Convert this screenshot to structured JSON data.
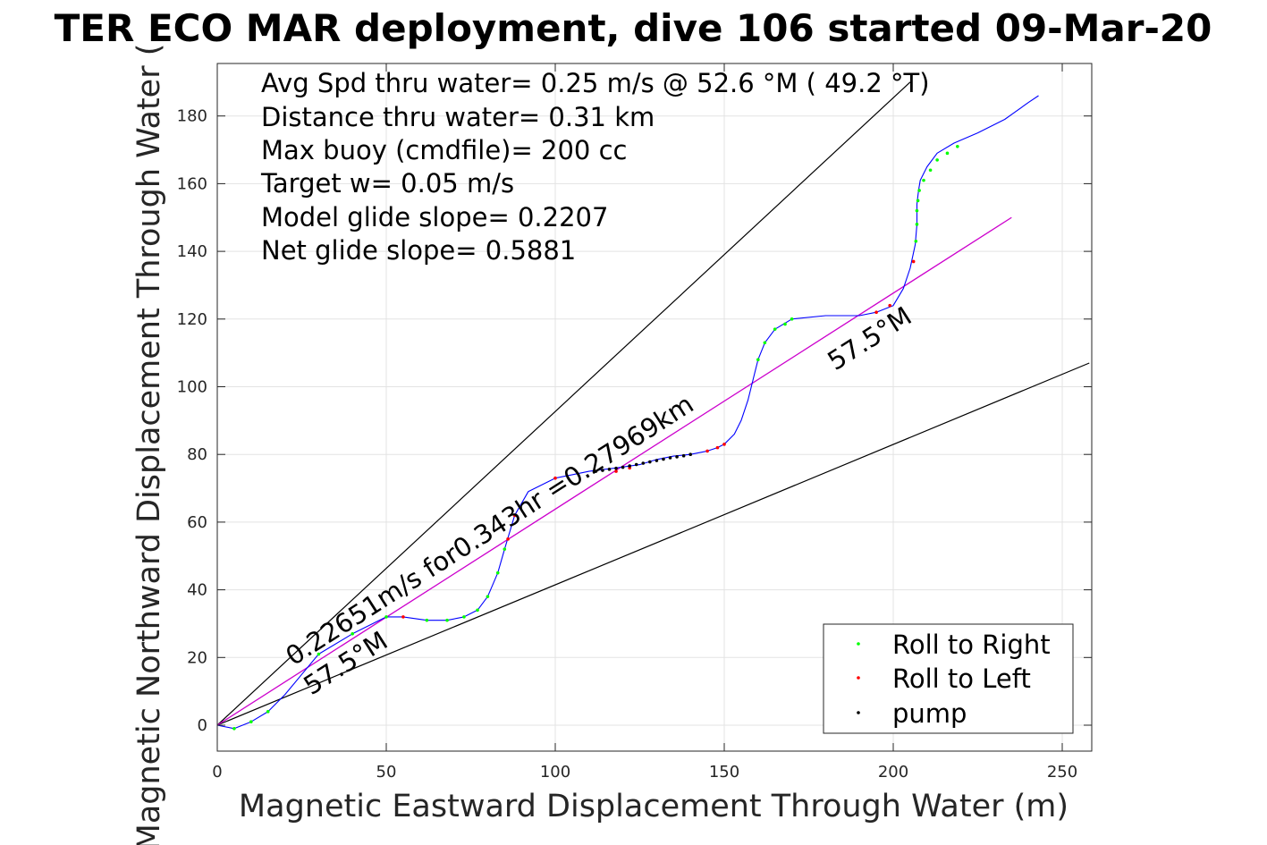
{
  "chart_data": {
    "type": "scatter",
    "title": "TER ECO MAR deployment, dive 106 started 09-Mar-20",
    "xlabel": "Magnetic Eastward Displacement Through Water (m)",
    "ylabel": "Magnetic Northward Displacement Through Water (",
    "xlim": [
      0,
      258
    ],
    "ylim": [
      -7,
      200
    ],
    "xticks": [
      0,
      50,
      100,
      150,
      200,
      250
    ],
    "yticks": [
      0,
      20,
      40,
      60,
      80,
      100,
      120,
      140,
      160,
      180
    ],
    "grid": true,
    "legend_position": "bottom-right",
    "legend": [
      {
        "label": "Roll to Right",
        "color": "#00ff00"
      },
      {
        "label": "Roll to Left",
        "color": "#ff0000"
      },
      {
        "label": "pump",
        "color": "#000000"
      }
    ],
    "annotations": [
      "Avg Spd thru water=  0.25 m/s @  52.6 °M ( 49.2 °T)",
      "Distance thru water=  0.31 km",
      "Max buoy (cmdfile)= 200 cc",
      "Target w= 0.05 m/s",
      "Model glide slope= 0.2207",
      "Net glide slope= 0.5881"
    ],
    "rotated_labels": {
      "track": "0.22651m/s for0.343hr =0.27969km",
      "heading_low": "57.5°M",
      "heading_high": "57.5°M"
    },
    "reference_lines": [
      {
        "name": "upper",
        "x": [
          0,
          205
        ],
        "y": [
          0,
          190
        ]
      },
      {
        "name": "lower",
        "x": [
          0,
          258
        ],
        "y": [
          0,
          107
        ]
      },
      {
        "name": "mean_heading",
        "x": [
          0,
          235
        ],
        "y": [
          0,
          150
        ]
      }
    ],
    "track_curve": {
      "color": "#0000ff",
      "x": [
        0,
        5,
        10,
        15,
        20,
        25,
        30,
        40,
        50,
        55,
        62,
        68,
        73,
        77,
        80,
        83,
        85,
        88,
        92,
        100,
        110,
        118,
        125,
        130,
        135,
        140,
        145,
        148,
        150,
        153,
        155,
        157,
        159,
        160,
        162,
        165,
        170,
        180,
        190,
        195,
        200,
        203,
        205,
        206.5,
        207,
        207,
        207.5,
        208,
        210,
        213,
        218,
        225,
        233,
        240,
        243
      ],
      "y": [
        0,
        -1,
        1,
        4,
        9,
        15,
        21,
        27,
        32,
        32,
        31,
        31,
        32,
        34,
        38,
        45,
        52,
        62,
        69,
        73,
        75,
        76,
        77,
        78.5,
        79.5,
        80,
        81,
        82,
        83,
        86,
        90,
        96,
        104,
        108,
        113,
        117,
        120,
        121,
        121,
        122,
        124,
        129,
        135,
        142,
        148,
        154,
        158,
        161,
        165,
        169,
        172,
        175,
        179,
        184,
        186
      ]
    },
    "roll_right": {
      "x": [
        5,
        10,
        15,
        30,
        40,
        50,
        62,
        68,
        73,
        77,
        80,
        83,
        85,
        160,
        162,
        165,
        168,
        170,
        206.7,
        207,
        207,
        207.3,
        207.7,
        209,
        211,
        213,
        216,
        219
      ],
      "y": [
        -1,
        1,
        4,
        21,
        27,
        32,
        31,
        31,
        32,
        34,
        38,
        45,
        52,
        108,
        113,
        117,
        118.5,
        120,
        143,
        148,
        152,
        155,
        158,
        161,
        164,
        167,
        169,
        171
      ]
    },
    "roll_left": {
      "x": [
        55,
        86,
        88,
        100,
        118,
        122,
        145,
        148,
        150,
        195,
        199,
        206
      ],
      "y": [
        32,
        55,
        62,
        73,
        75,
        76,
        81,
        82,
        83,
        122,
        124,
        137
      ]
    },
    "pump": {
      "x": [
        112,
        114,
        116,
        118,
        120,
        122,
        124,
        126,
        128,
        130,
        132,
        134,
        136,
        138,
        140
      ],
      "y": [
        75,
        75.3,
        75.6,
        75.9,
        76.2,
        76.6,
        77,
        77.4,
        77.8,
        78.2,
        78.6,
        79,
        79.3,
        79.6,
        80
      ]
    }
  }
}
